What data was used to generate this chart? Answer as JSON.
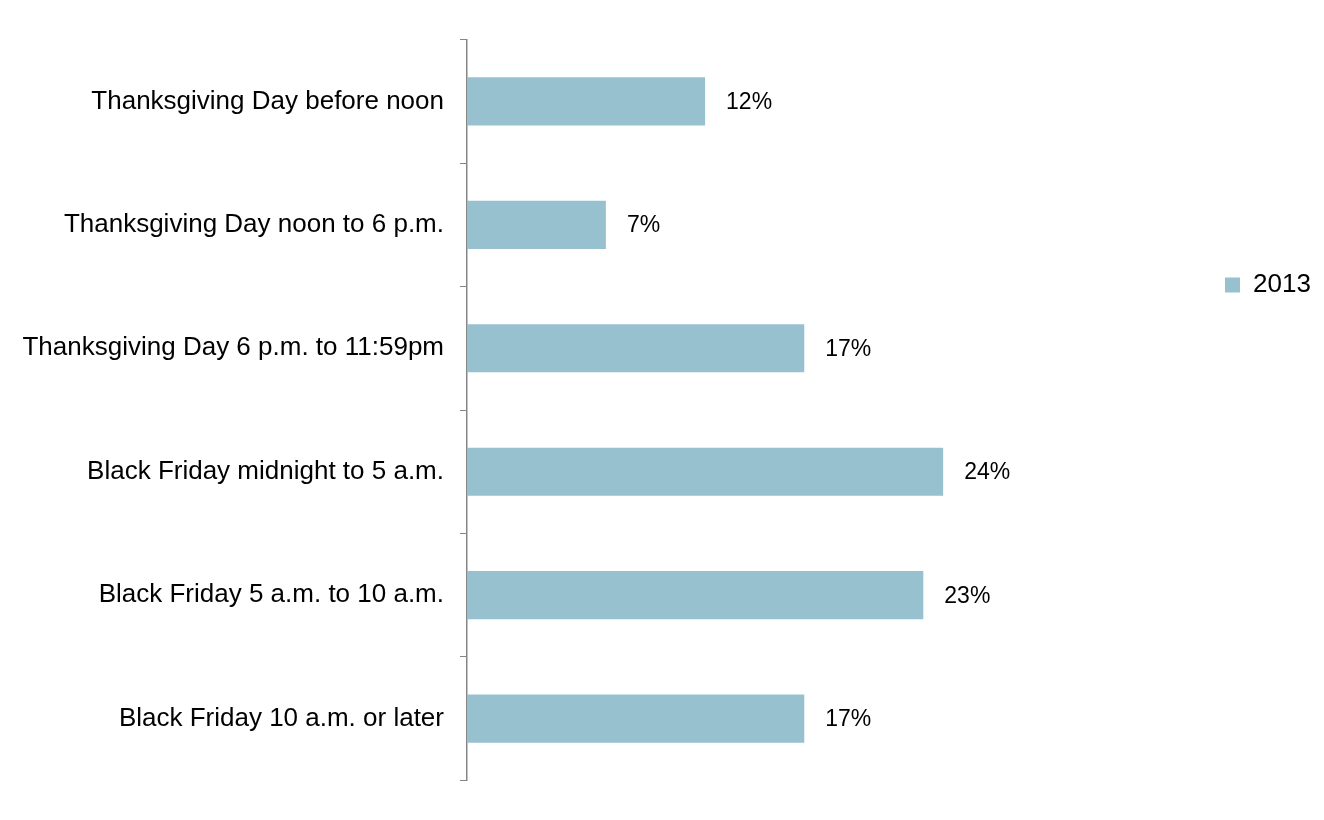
{
  "chart_data": {
    "type": "bar",
    "orientation": "horizontal",
    "categories": [
      "Thanksgiving Day before noon",
      "Thanksgiving Day noon to 6 p.m.",
      "Thanksgiving Day 6 p.m. to 11:59pm",
      "Black Friday midnight to 5 a.m.",
      "Black Friday 5 a.m. to 10 a.m.",
      "Black Friday 10 a.m. or later"
    ],
    "series": [
      {
        "name": "2013",
        "color": "#98c1cf",
        "values": [
          12,
          7,
          17,
          24,
          23,
          17
        ],
        "value_labels": [
          "12%",
          "7%",
          "17%",
          "24%",
          "23%",
          "17%"
        ]
      }
    ],
    "legend": "right",
    "grid": false
  }
}
